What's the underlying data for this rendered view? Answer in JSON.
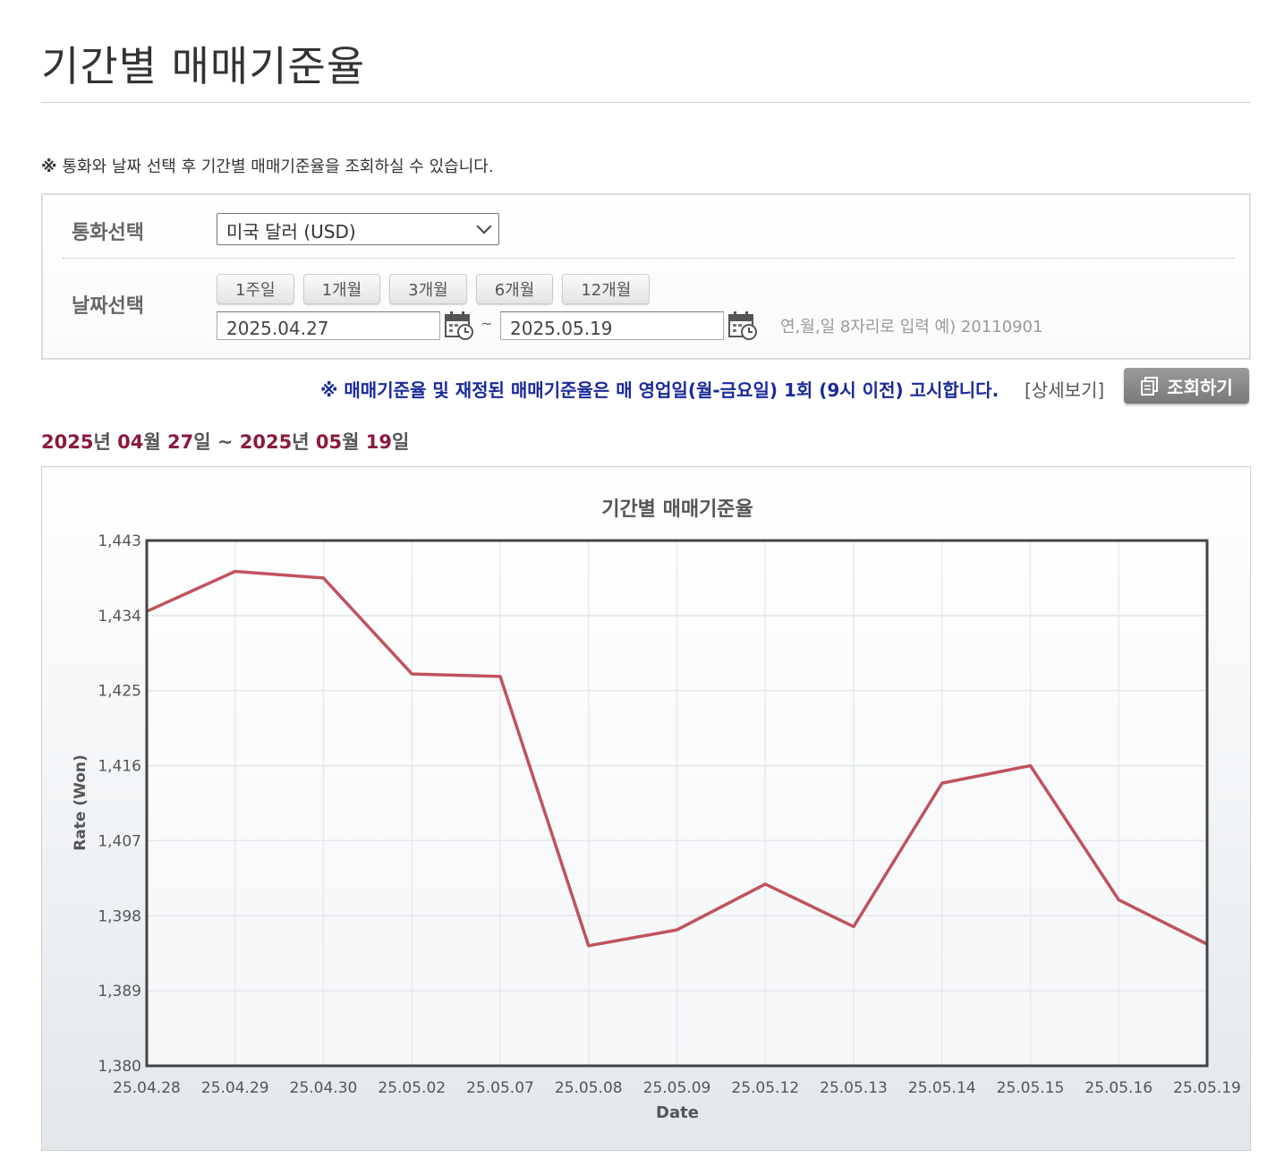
{
  "page": {
    "title": "기간별 매매기준율",
    "notice_mark": "※",
    "notice_text": "통화와 날짜 선택 후 기간별 매매기준율을 조회하실 수 있습니다."
  },
  "search": {
    "currency_label": "통화선택",
    "currency_value": "미국 달러 (USD)",
    "date_label": "날짜선택",
    "period_buttons": [
      "1주일",
      "1개월",
      "3개월",
      "6개월",
      "12개월"
    ],
    "start_date": "2025.04.27",
    "end_date": "2025.05.19",
    "tilde": "~",
    "date_hint": "연,월,일 8자리로 입력 예) 20110901"
  },
  "announce": {
    "text": "※ 매매기준율 및 재정된 매매기준율은 매 영업일(월-금요일) 1회 (9시 이전) 고시합니다.",
    "detail_link": "[상세보기]",
    "inquiry_button": "조회하기"
  },
  "range": {
    "y1": "2025",
    "u_year1": "년 ",
    "m1": "04",
    "u_month1": "월 ",
    "d1": "27",
    "u_day1": "일",
    "sep": " ~ ",
    "y2": "2025",
    "u_year2": "년 ",
    "m2": "05",
    "u_month2": "월 ",
    "d2": "19",
    "u_day2": "일"
  },
  "colors": {
    "line": "#c0525f",
    "plot_border": "#444444",
    "accent_number": "#8b1a3a",
    "announce": "#1a2a9a"
  },
  "chart_data": {
    "type": "line",
    "title": "기간별 매매기준율",
    "xlabel": "Date",
    "ylabel": "Rate (Won)",
    "ylim": [
      1380,
      1443
    ],
    "yticks": [
      "1,380",
      "1,389",
      "1,398",
      "1,407",
      "1,416",
      "1,425",
      "1,434",
      "1,443"
    ],
    "ytick_values": [
      1380,
      1389,
      1398,
      1407,
      1416,
      1425,
      1434,
      1443
    ],
    "categories": [
      "25.04.28",
      "25.04.29",
      "25.04.30",
      "25.05.02",
      "25.05.07",
      "25.05.08",
      "25.05.09",
      "25.05.12",
      "25.05.13",
      "25.05.14",
      "25.05.15",
      "25.05.16",
      "25.05.19"
    ],
    "values": [
      1434.5,
      1439.3,
      1438.5,
      1427.0,
      1426.7,
      1394.4,
      1396.3,
      1401.8,
      1396.7,
      1413.9,
      1416.0,
      1399.9,
      1394.6
    ],
    "grid": true
  }
}
